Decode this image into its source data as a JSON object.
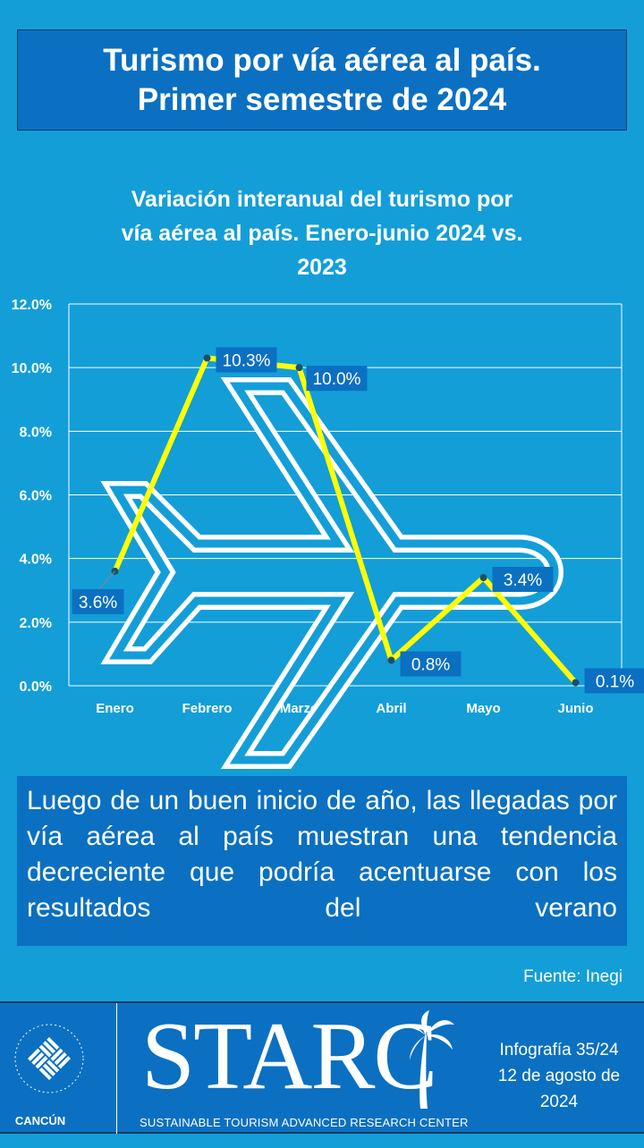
{
  "header": {
    "title_line1": "Turismo por vía aérea al país.",
    "title_line2": "Primer semestre de 2024"
  },
  "chart_data": {
    "type": "line",
    "title": "Variación interanual del turismo por vía aérea al país. Enero-junio 2024 vs. 2023",
    "title_lines": [
      "Variación interanual del turismo por",
      "vía aérea al país. Enero-junio 2024 vs.",
      "2023"
    ],
    "categories": [
      "Enero",
      "Febrero",
      "Marzo",
      "Abril",
      "Mayo",
      "Junio"
    ],
    "values": [
      3.6,
      10.3,
      10.0,
      0.8,
      3.4,
      0.1
    ],
    "data_labels": [
      "3.6%",
      "10.3%",
      "10.0%",
      "0.8%",
      "3.4%",
      "0.1%"
    ],
    "ylim": [
      0,
      12
    ],
    "yticks": [
      "0.0%",
      "2.0%",
      "4.0%",
      "6.0%",
      "8.0%",
      "10.0%",
      "12.0%"
    ],
    "grid": true,
    "line_color": "#ffff00",
    "label_bg": "#0b70c1"
  },
  "message": "Luego de un buen inicio de año, las llegadas por vía aérea al país muestran una tendencia decreciente que podría acentuarse con los resultados del verano",
  "source": "Fuente: Inegi",
  "footer": {
    "university_logo": "UNIVERSIDAD ANÁHUAC · VINCE IN BONO MALUM",
    "campus": "CANCÚN",
    "brand": "STARC",
    "brand_sub": "SUSTAINABLE TOURISM ADVANCED RESEARCH CENTER",
    "info_line1": "Infografía 35/24",
    "info_line2": "12 de agosto de",
    "info_line3": "2024"
  },
  "colors": {
    "background": "#139ed8",
    "box": "#0b70c1"
  }
}
